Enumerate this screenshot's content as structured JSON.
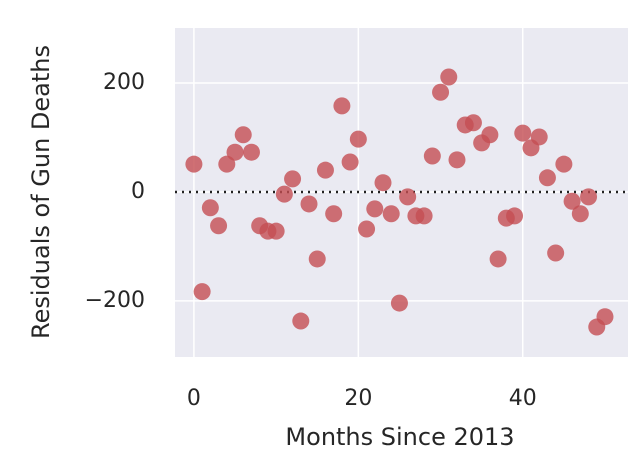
{
  "chart_data": {
    "type": "scatter",
    "xlabel": "Months Since 2013",
    "ylabel": "Residuals of Gun Deaths",
    "x": [
      0,
      1,
      2,
      3,
      4,
      5,
      6,
      7,
      8,
      9,
      10,
      11,
      12,
      13,
      14,
      15,
      16,
      17,
      18,
      19,
      20,
      21,
      22,
      23,
      24,
      25,
      26,
      27,
      28,
      29,
      30,
      31,
      32,
      33,
      34,
      35,
      36,
      37,
      38,
      39,
      40,
      41,
      42,
      43,
      44,
      45,
      46,
      47,
      48,
      49,
      50
    ],
    "values": [
      51,
      -183,
      -29,
      -62,
      51,
      73,
      105,
      73,
      -62,
      -72,
      -72,
      -4,
      24,
      -237,
      -22,
      -123,
      40,
      -40,
      158,
      55,
      97,
      -68,
      -31,
      17,
      -40,
      -204,
      -9,
      -44,
      -44,
      66,
      183,
      211,
      59,
      123,
      127,
      90,
      105,
      -123,
      -48,
      -44,
      108,
      81,
      101,
      26,
      -112,
      51,
      -17,
      -40,
      -9,
      -248,
      -229
    ],
    "color": "#c44e52",
    "xlim": [
      -2.3,
      52.8
    ],
    "ylim": [
      -303,
      301
    ],
    "xticks": [
      0,
      20,
      40
    ],
    "yticks": [
      {
        "value": -200,
        "label": "−200"
      },
      0,
      200
    ],
    "hline": 0,
    "grid": true
  }
}
